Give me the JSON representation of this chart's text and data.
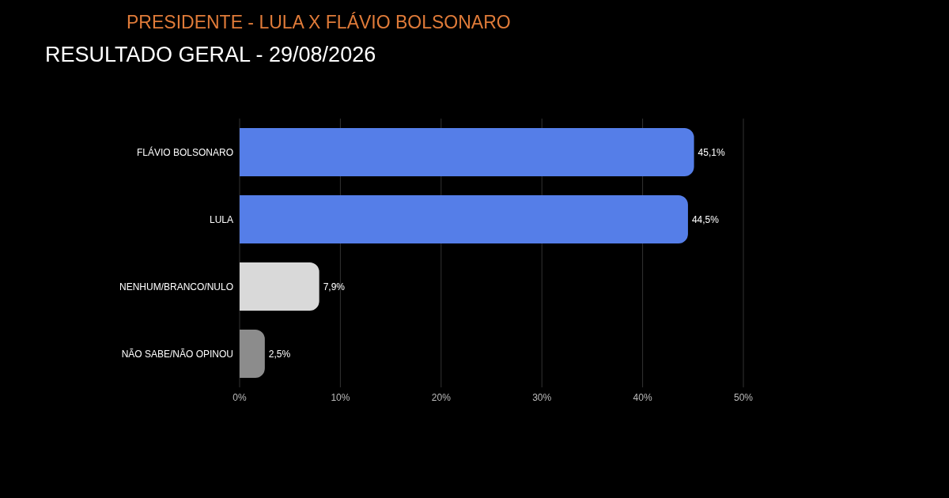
{
  "chart_data": {
    "type": "bar",
    "orientation": "horizontal",
    "title": "PRESIDENTE - LULA X FLÁVIO BOLSONARO",
    "subtitle": "RESULTADO GERAL - 29/08/2026",
    "categories": [
      "FLÁVIO BOLSONARO",
      "LULA",
      "NENHUM/BRANCO/NULO",
      "NÃO SABE/NÃO OPINOU"
    ],
    "values": [
      45.1,
      44.5,
      7.9,
      2.5
    ],
    "colors": [
      "#557ee8",
      "#557ee8",
      "#d9d9d9",
      "#8c8c8c"
    ],
    "value_labels": [
      "45,1%",
      "44,5%",
      "7,9%",
      "2,5%"
    ],
    "xlim": [
      0,
      50
    ],
    "xticks": [
      {
        "value": 0,
        "label": "0%"
      },
      {
        "value": 10,
        "label": "10%"
      },
      {
        "value": 20,
        "label": "20%"
      },
      {
        "value": 30,
        "label": "30%"
      },
      {
        "value": 40,
        "label": "40%"
      },
      {
        "value": 50,
        "label": "50%"
      }
    ],
    "grid": "x"
  }
}
